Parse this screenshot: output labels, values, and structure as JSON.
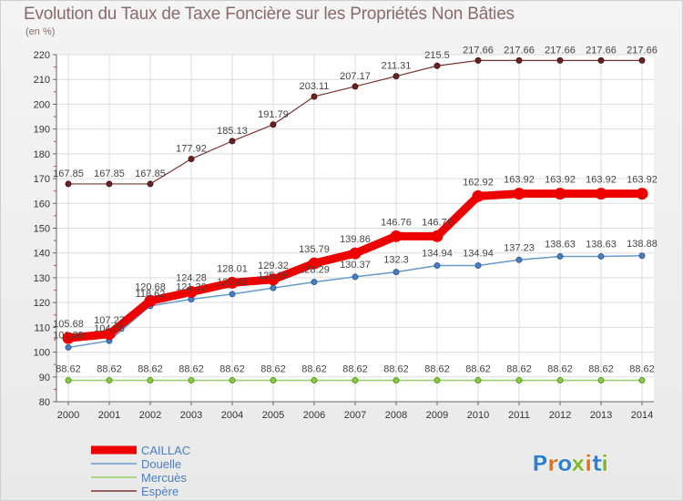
{
  "chart_data": {
    "type": "line",
    "title": "Evolution du Taux de Taxe Foncière sur les Propriétés Non Bâties",
    "subtitle": "(en %)",
    "xlabel": "",
    "ylabel": "",
    "x": [
      "2000",
      "2001",
      "2002",
      "2003",
      "2004",
      "2005",
      "2006",
      "2007",
      "2008",
      "2009",
      "2010",
      "2011",
      "2012",
      "2013",
      "2014"
    ],
    "ylim": [
      80,
      220
    ],
    "yticks": [
      80,
      90,
      100,
      110,
      120,
      130,
      140,
      150,
      160,
      170,
      180,
      190,
      200,
      210,
      220
    ],
    "grid": true,
    "legend_position": "bottom-left",
    "series": [
      {
        "name": "CAILLAC",
        "color": "#ee0000",
        "values": [
          105.68,
          107.27,
          120.68,
          124.28,
          128.01,
          129.32,
          135.79,
          139.86,
          146.76,
          146.76,
          162.92,
          163.92,
          163.92,
          163.92,
          163.92
        ]
      },
      {
        "name": "Douelle",
        "color": "#6699cc",
        "values": [
          101.89,
          104.58,
          118.62,
          121.32,
          123.42,
          125.88,
          128.29,
          130.37,
          132.3,
          134.94,
          134.94,
          137.23,
          138.63,
          138.63,
          138.88
        ]
      },
      {
        "name": "Mercuès",
        "color": "#99cc66",
        "values": [
          88.62,
          88.62,
          88.62,
          88.62,
          88.62,
          88.62,
          88.62,
          88.62,
          88.62,
          88.62,
          88.62,
          88.62,
          88.62,
          88.62,
          88.62
        ]
      },
      {
        "name": "Espère",
        "color": "#7a3333",
        "values": [
          167.85,
          167.85,
          167.85,
          177.92,
          185.13,
          191.79,
          203.11,
          207.17,
          211.31,
          215.5,
          217.66,
          217.66,
          217.66,
          217.66,
          217.66
        ]
      }
    ]
  },
  "labels": [
    [
      "105.68",
      "107.27",
      "120.68",
      "124.28",
      "128.01",
      "129.32",
      "135.79",
      "139.86",
      "146.76",
      "146.76",
      "162.92",
      "163.92",
      "163.92",
      "163.92",
      "163.92"
    ],
    [
      "101.89",
      "104.58",
      "118.62",
      "121.32",
      "123.42",
      "125.88",
      "128.29",
      "130.37",
      "132.3",
      "134.94",
      "134.94",
      "137.23",
      "138.63",
      "138.63",
      "138.88"
    ],
    [
      "88.62",
      "88.62",
      "88.62",
      "88.62",
      "88.62",
      "88.62",
      "88.62",
      "88.62",
      "88.62",
      "88.62",
      "88.62",
      "88.62",
      "88.62",
      "88.62",
      "88.62"
    ],
    [
      "167.85",
      "167.85",
      "167.85",
      "177.92",
      "185.13",
      "191.79",
      "203.11",
      "207.17",
      "211.31",
      "215.5",
      "217.66",
      "217.66",
      "217.66",
      "217.66",
      "217.66"
    ]
  ],
  "brand": {
    "text": "Proxiti",
    "colors": [
      "#2f7fd0",
      "#e07020",
      "#2f7fd0",
      "#7fb52f",
      "#e07020",
      "#2f7fd0",
      "#7fb52f"
    ]
  }
}
